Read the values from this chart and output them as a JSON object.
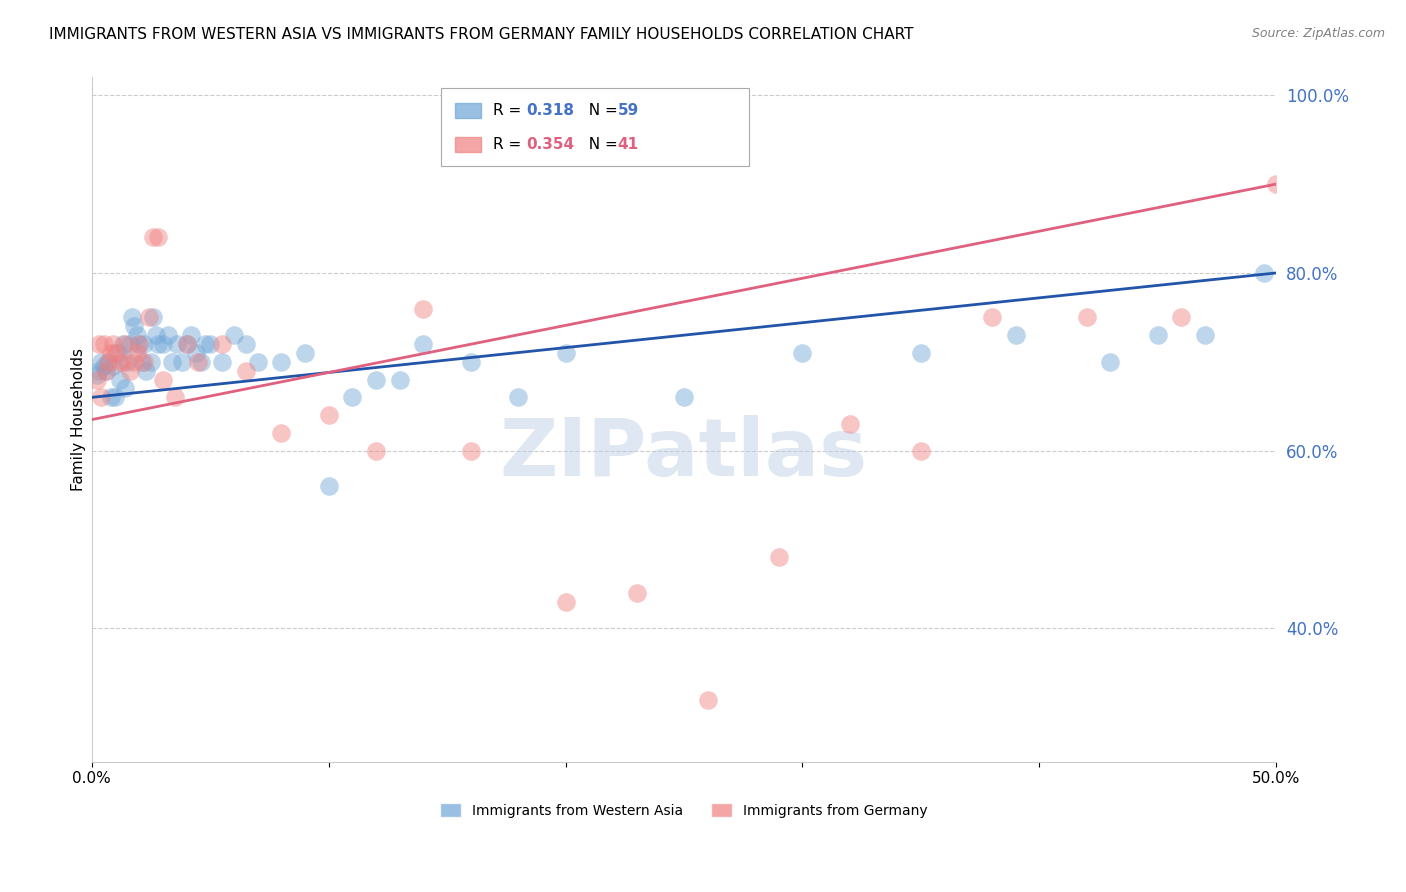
{
  "title": "IMMIGRANTS FROM WESTERN ASIA VS IMMIGRANTS FROM GERMANY FAMILY HOUSEHOLDS CORRELATION CHART",
  "source": "Source: ZipAtlas.com",
  "ylabel": "Family Households",
  "xlim": [
    0.0,
    0.5
  ],
  "ylim": [
    0.25,
    1.02
  ],
  "yticks_right": [
    0.4,
    0.6,
    0.8,
    1.0
  ],
  "yticklabels_right": [
    "40.0%",
    "60.0%",
    "80.0%",
    "100.0%"
  ],
  "legend_blue_label": "Immigrants from Western Asia",
  "legend_pink_label": "Immigrants from Germany",
  "legend_blue_R": "0.318",
  "legend_blue_N": "59",
  "legend_pink_R": "0.354",
  "legend_pink_N": "41",
  "blue_color": "#6EA6D6",
  "pink_color": "#F08080",
  "blue_line_color": "#2255AA",
  "pink_line_color": "#E06080",
  "watermark": "ZIPatlas",
  "blue_x": [
    0.002,
    0.003,
    0.004,
    0.005,
    0.006,
    0.007,
    0.008,
    0.009,
    0.01,
    0.011,
    0.012,
    0.013,
    0.014,
    0.015,
    0.016,
    0.017,
    0.018,
    0.019,
    0.02,
    0.021,
    0.022,
    0.023,
    0.025,
    0.026,
    0.027,
    0.028,
    0.03,
    0.032,
    0.034,
    0.036,
    0.038,
    0.04,
    0.042,
    0.044,
    0.046,
    0.048,
    0.05,
    0.055,
    0.06,
    0.065,
    0.07,
    0.08,
    0.09,
    0.1,
    0.11,
    0.12,
    0.13,
    0.14,
    0.16,
    0.18,
    0.2,
    0.25,
    0.3,
    0.35,
    0.39,
    0.43,
    0.45,
    0.47,
    0.495
  ],
  "blue_y": [
    0.685,
    0.69,
    0.7,
    0.695,
    0.69,
    0.7,
    0.66,
    0.695,
    0.66,
    0.71,
    0.68,
    0.72,
    0.67,
    0.7,
    0.72,
    0.75,
    0.74,
    0.73,
    0.72,
    0.7,
    0.72,
    0.69,
    0.7,
    0.75,
    0.73,
    0.72,
    0.72,
    0.73,
    0.7,
    0.72,
    0.7,
    0.72,
    0.73,
    0.71,
    0.7,
    0.72,
    0.72,
    0.7,
    0.73,
    0.72,
    0.7,
    0.7,
    0.71,
    0.56,
    0.66,
    0.68,
    0.68,
    0.72,
    0.7,
    0.66,
    0.71,
    0.66,
    0.71,
    0.71,
    0.73,
    0.7,
    0.73,
    0.73,
    0.8
  ],
  "pink_x": [
    0.002,
    0.003,
    0.004,
    0.005,
    0.006,
    0.007,
    0.008,
    0.009,
    0.01,
    0.012,
    0.013,
    0.014,
    0.016,
    0.018,
    0.019,
    0.02,
    0.022,
    0.024,
    0.026,
    0.028,
    0.03,
    0.035,
    0.04,
    0.045,
    0.055,
    0.065,
    0.08,
    0.1,
    0.12,
    0.14,
    0.16,
    0.2,
    0.23,
    0.26,
    0.29,
    0.32,
    0.35,
    0.38,
    0.42,
    0.46,
    0.5
  ],
  "pink_y": [
    0.68,
    0.72,
    0.66,
    0.72,
    0.69,
    0.7,
    0.71,
    0.72,
    0.71,
    0.7,
    0.7,
    0.72,
    0.69,
    0.7,
    0.71,
    0.72,
    0.7,
    0.75,
    0.84,
    0.84,
    0.68,
    0.66,
    0.72,
    0.7,
    0.72,
    0.69,
    0.62,
    0.64,
    0.6,
    0.76,
    0.6,
    0.43,
    0.44,
    0.32,
    0.48,
    0.63,
    0.6,
    0.75,
    0.75,
    0.75,
    0.9
  ],
  "blue_trendline_x": [
    0.0,
    0.5
  ],
  "blue_trendline_y": [
    0.66,
    0.8
  ],
  "pink_trendline_x": [
    0.0,
    0.5
  ],
  "pink_trendline_y": [
    0.635,
    0.9
  ],
  "marker_size": 180,
  "marker_alpha": 0.45,
  "grid_color": "#cccccc",
  "grid_linestyle": "--",
  "background_color": "#ffffff",
  "title_fontsize": 11,
  "ylabel_fontsize": 11,
  "tick_fontsize": 11,
  "right_tick_color": "#4472c4",
  "legend_color_blue": "#4472c4",
  "legend_color_pink": "#E06080"
}
